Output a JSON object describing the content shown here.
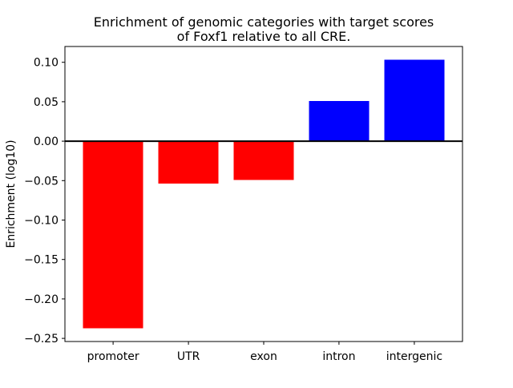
{
  "figure": {
    "background": "#ffffff"
  },
  "chart_data": {
    "type": "bar",
    "title": "Enrichment of genomic categories with target scores of Foxf1 relative to all CRE.",
    "title_lines": [
      "Enrichment of genomic categories with target scores",
      "of Foxf1 relative to all CRE."
    ],
    "xlabel": "",
    "ylabel": "Enrichment (log10)",
    "categories": [
      "promoter",
      "UTR",
      "exon",
      "intron",
      "intergenic"
    ],
    "values": [
      -0.237,
      -0.054,
      -0.049,
      0.051,
      0.103
    ],
    "bar_colors": [
      "#ff0000",
      "#ff0000",
      "#ff0000",
      "#0000ff",
      "#0000ff"
    ],
    "colors": {
      "negative": "#ff0000",
      "positive": "#0000ff",
      "axis": "#000000",
      "background": "#ffffff"
    },
    "ylim": [
      -0.254,
      0.12
    ],
    "yticks": [
      {
        "value": 0.1,
        "label": "0.10"
      },
      {
        "value": 0.05,
        "label": "0.05"
      },
      {
        "value": 0.0,
        "label": "0.00"
      },
      {
        "value": -0.05,
        "label": "−0.05"
      },
      {
        "value": -0.1,
        "label": "−0.10"
      },
      {
        "value": -0.15,
        "label": "−0.15"
      },
      {
        "value": -0.2,
        "label": "−0.20"
      },
      {
        "value": -0.25,
        "label": "−0.25"
      }
    ],
    "bar_width_fraction": 0.8,
    "zero_line": true,
    "grid": false,
    "legend_position": "none"
  }
}
